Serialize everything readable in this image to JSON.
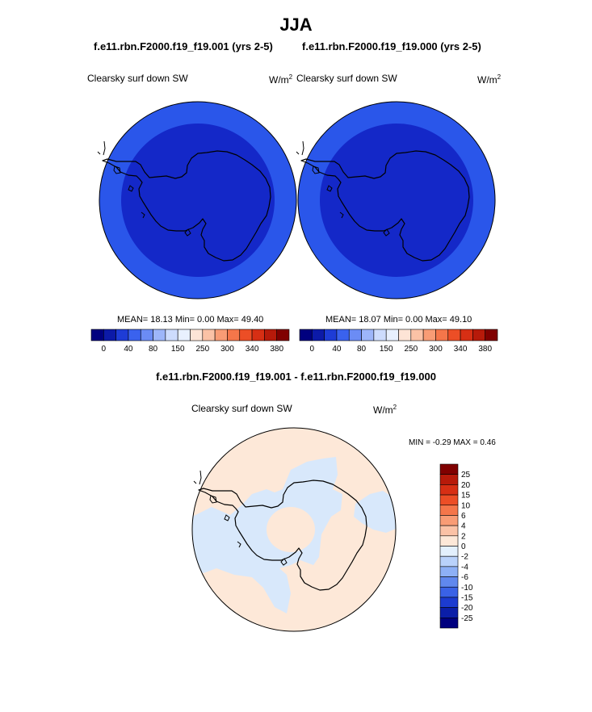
{
  "season": "JJA",
  "panels": [
    {
      "case_title": "f.e11.rbn.F2000.f19_f19.001 (yrs 2-5)",
      "field": "Clearsky surf down SW",
      "units": "W/m",
      "units_exp": "2",
      "stats": "MEAN=  18.13  Min=   0.00  Max=  49.40"
    },
    {
      "case_title": "f.e11.rbn.F2000.f19_f19.000 (yrs 2-5)",
      "field": "Clearsky surf down SW",
      "units": "W/m",
      "units_exp": "2",
      "stats": "MEAN=  18.07  Min=   0.00  Max=  49.10"
    }
  ],
  "top_colorbar": {
    "labels": [
      "0",
      "40",
      "80",
      "150",
      "250",
      "300",
      "340",
      "380"
    ],
    "colors": [
      "#00007f",
      "#0c1aa8",
      "#1e3cd6",
      "#3a62ee",
      "#6b8cf5",
      "#9db6fa",
      "#cddcfd",
      "#e8f0fe",
      "#fde4d6",
      "#fbc2a6",
      "#f99c75",
      "#f5764a",
      "#ec4e26",
      "#d72f14",
      "#b71a0a",
      "#800000"
    ]
  },
  "diff": {
    "title": "f.e11.rbn.F2000.f19_f19.001 - f.e11.rbn.F2000.f19_f19.000",
    "field": "Clearsky surf down SW",
    "units": "W/m",
    "units_exp": "2",
    "minmax": "MIN =  -0.29 MAX =   0.46",
    "colorbar_labels": [
      "25",
      "20",
      "15",
      "10",
      "6",
      "4",
      "2",
      "0",
      "-2",
      "-4",
      "-6",
      "-10",
      "-15",
      "-20",
      "-25"
    ],
    "colorbar_colors": [
      "#800000",
      "#b71a0a",
      "#d72f14",
      "#ec4e26",
      "#f5764a",
      "#f99c75",
      "#fbc2a6",
      "#fde8d8",
      "#e3f0fd",
      "#b9d2fb",
      "#8db0f6",
      "#6088ee",
      "#3a62e6",
      "#1c3bd0",
      "#0b1ea8",
      "#00007f"
    ]
  },
  "map_colors": {
    "outer_ring": "#2a56ea",
    "inner_disk": "#1428c8",
    "positive_fill": "#fde8d8",
    "negative_fill": "#d8e8fb"
  }
}
